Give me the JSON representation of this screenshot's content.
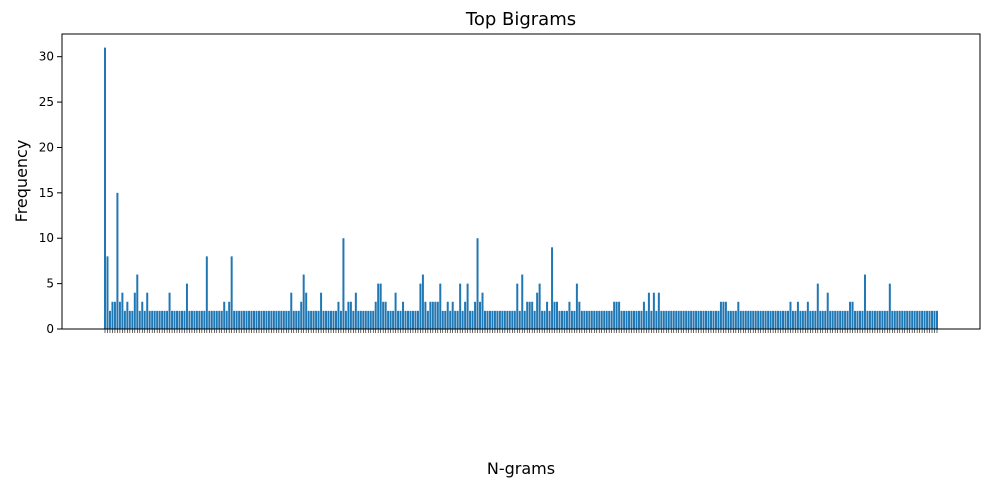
{
  "chart_data": {
    "type": "bar",
    "title": "Top Bigrams",
    "xlabel": "N-grams",
    "ylabel": "Frequency",
    "ylim": [
      0,
      32.5
    ],
    "yticks": [
      0,
      5,
      10,
      15,
      20,
      25,
      30
    ],
    "grid": false,
    "bar_color": "#1f77b4",
    "x_tick_labels_legible": false,
    "values": [
      31,
      8,
      2,
      3,
      3,
      15,
      3,
      4,
      2,
      3,
      2,
      2,
      4,
      6,
      2,
      3,
      2,
      4,
      2,
      2,
      2,
      2,
      2,
      2,
      2,
      2,
      4,
      2,
      2,
      2,
      2,
      2,
      2,
      5,
      2,
      2,
      2,
      2,
      2,
      2,
      2,
      8,
      2,
      2,
      2,
      2,
      2,
      2,
      3,
      2,
      3,
      8,
      2,
      2,
      2,
      2,
      2,
      2,
      2,
      2,
      2,
      2,
      2,
      2,
      2,
      2,
      2,
      2,
      2,
      2,
      2,
      2,
      2,
      2,
      2,
      4,
      2,
      2,
      2,
      3,
      6,
      4,
      2,
      2,
      2,
      2,
      2,
      4,
      2,
      2,
      2,
      2,
      2,
      2,
      3,
      2,
      10,
      2,
      3,
      3,
      2,
      4,
      2,
      2,
      2,
      2,
      2,
      2,
      2,
      3,
      5,
      5,
      3,
      3,
      2,
      2,
      2,
      4,
      2,
      2,
      3,
      2,
      2,
      2,
      2,
      2,
      2,
      5,
      6,
      3,
      2,
      3,
      3,
      3,
      3,
      5,
      2,
      2,
      3,
      2,
      3,
      2,
      2,
      5,
      2,
      3,
      5,
      2,
      2,
      3,
      10,
      3,
      4,
      2,
      2,
      2,
      2,
      2,
      2,
      2,
      2,
      2,
      2,
      2,
      2,
      2,
      5,
      2,
      6,
      2,
      3,
      3,
      3,
      2,
      4,
      5,
      2,
      2,
      3,
      2,
      9,
      3,
      3,
      2,
      2,
      2,
      2,
      3,
      2,
      2,
      5,
      3,
      2,
      2,
      2,
      2,
      2,
      2,
      2,
      2,
      2,
      2,
      2,
      2,
      2,
      3,
      3,
      3,
      2,
      2,
      2,
      2,
      2,
      2,
      2,
      2,
      2,
      3,
      2,
      4,
      2,
      4,
      2,
      4,
      2,
      2,
      2,
      2,
      2,
      2,
      2,
      2,
      2,
      2,
      2,
      2,
      2,
      2,
      2,
      2,
      2,
      2,
      2,
      2,
      2,
      2,
      2,
      2,
      3,
      3,
      3,
      2,
      2,
      2,
      2,
      3,
      2,
      2,
      2,
      2,
      2,
      2,
      2,
      2,
      2,
      2,
      2,
      2,
      2,
      2,
      2,
      2,
      2,
      2,
      2,
      2,
      3,
      2,
      2,
      3,
      2,
      2,
      2,
      3,
      2,
      2,
      2,
      5,
      2,
      2,
      2,
      4,
      2,
      2,
      2,
      2,
      2,
      2,
      2,
      2,
      3,
      3,
      2,
      2,
      2,
      2,
      6,
      2,
      2,
      2,
      2,
      2,
      2,
      2,
      2,
      2,
      5,
      2,
      2,
      2,
      2,
      2,
      2,
      2,
      2,
      2,
      2,
      2,
      2,
      2,
      2,
      2,
      2,
      2,
      2,
      2
    ]
  }
}
